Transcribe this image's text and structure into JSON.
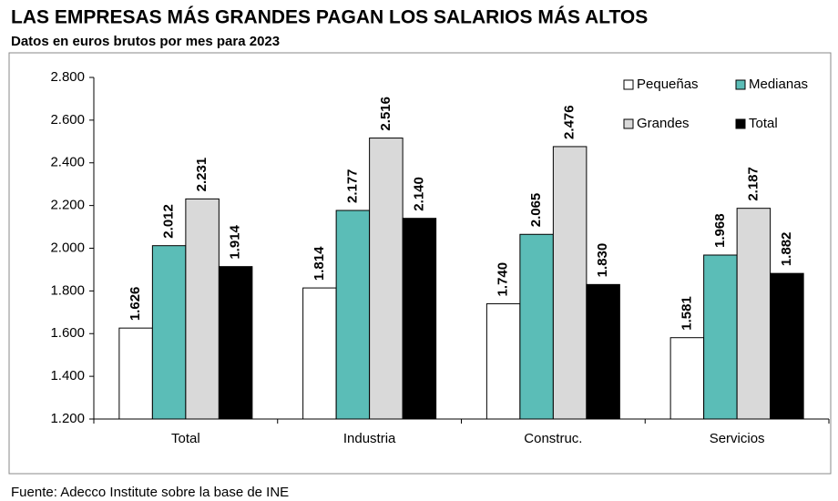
{
  "chart_data": {
    "type": "bar",
    "title": "LAS EMPRESAS MÁS GRANDES PAGAN LOS SALARIOS MÁS ALTOS",
    "subtitle": "Datos en euros brutos por mes para 2023",
    "source": "Fuente: Adecco Institute sobre la base de INE",
    "categories": [
      "Total",
      "Industria",
      "Construc.",
      "Servicios"
    ],
    "series": [
      {
        "name": "Pequeñas",
        "color": "#ffffff",
        "values": [
          1626,
          1814,
          1740,
          1581
        ],
        "value_labels": [
          "1.626",
          "1.814",
          "1.740",
          "1.581"
        ]
      },
      {
        "name": "Medianas",
        "color": "#5bbdb7",
        "values": [
          2012,
          2177,
          2065,
          1968
        ],
        "value_labels": [
          "2.012",
          "2.177",
          "2.065",
          "1.968"
        ]
      },
      {
        "name": "Grandes",
        "color": "#d9d9d9",
        "values": [
          2231,
          2516,
          2476,
          2187
        ],
        "value_labels": [
          "2.231",
          "2.516",
          "2.476",
          "2.187"
        ]
      },
      {
        "name": "Total",
        "color": "#000000",
        "values": [
          1914,
          2140,
          1830,
          1882
        ],
        "value_labels": [
          "1.914",
          "2.140",
          "1.830",
          "1.882"
        ]
      }
    ],
    "ylim": [
      1200,
      2800
    ],
    "yticks": [
      {
        "value": 1200,
        "label": "1.200"
      },
      {
        "value": 1400,
        "label": "1.400"
      },
      {
        "value": 1600,
        "label": "1.600"
      },
      {
        "value": 1800,
        "label": "1.800"
      },
      {
        "value": 2000,
        "label": "2.000"
      },
      {
        "value": 2200,
        "label": "2.200"
      },
      {
        "value": 2400,
        "label": "2.400"
      },
      {
        "value": 2600,
        "label": "2.600"
      },
      {
        "value": 2800,
        "label": "2.800"
      }
    ],
    "grid": false,
    "legend": "top-right"
  }
}
